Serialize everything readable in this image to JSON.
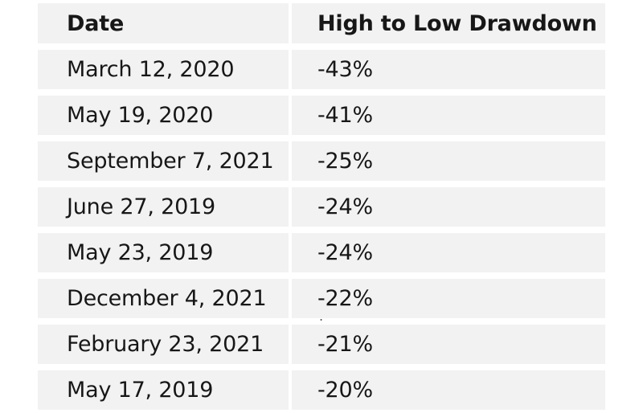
{
  "chart_data": {
    "type": "table",
    "title": "",
    "columns": [
      "Date",
      "High to Low Drawdown"
    ],
    "rows": [
      [
        "March 12, 2020",
        "-43%"
      ],
      [
        "May 19, 2020",
        "-41%"
      ],
      [
        "September 7, 2021",
        "-25%"
      ],
      [
        "June 27, 2019",
        "-24%"
      ],
      [
        "May 23, 2019",
        "-24%"
      ],
      [
        "December 4, 2021",
        "-22%"
      ],
      [
        "February 23, 2021",
        "-21%"
      ],
      [
        "May 17, 2019",
        "-20%"
      ]
    ],
    "drawdown_values_numeric": [
      -43,
      -41,
      -25,
      -24,
      -24,
      -22,
      -21,
      -20
    ]
  },
  "stray_mark": ".",
  "colors": {
    "cell_background": "#f2f2f2",
    "gutter": "#ffffff",
    "text": "#171717",
    "page_background": "#ffffff"
  }
}
